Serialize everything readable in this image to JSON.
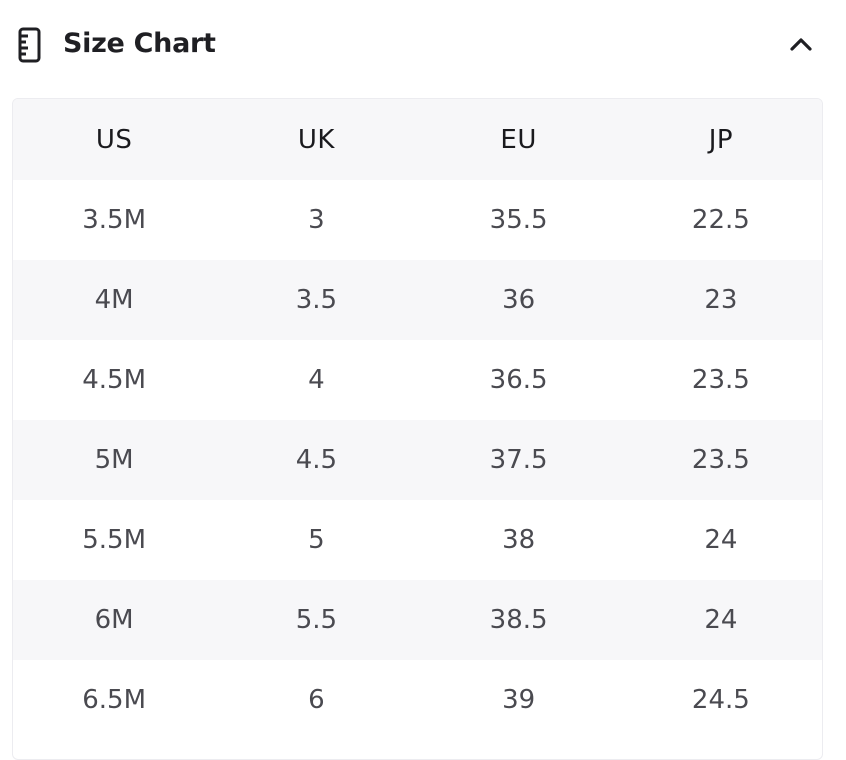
{
  "header": {
    "title": "Size Chart",
    "icon": "ruler-icon",
    "toggle_icon": "chevron-up-icon"
  },
  "table": {
    "columns": [
      "US",
      "UK",
      "EU",
      "JP"
    ],
    "rows": [
      [
        "3.5M",
        "3",
        "35.5",
        "22.5"
      ],
      [
        "4M",
        "3.5",
        "36",
        "23"
      ],
      [
        "4.5M",
        "4",
        "36.5",
        "23.5"
      ],
      [
        "5M",
        "4.5",
        "37.5",
        "23.5"
      ],
      [
        "5.5M",
        "5",
        "38",
        "24"
      ],
      [
        "6M",
        "5.5",
        "38.5",
        "24"
      ],
      [
        "6.5M",
        "6",
        "39",
        "24.5"
      ]
    ]
  },
  "colors": {
    "text_primary": "#1f1f23",
    "text_secondary": "#4a4a50",
    "stripe": "#f7f7f9",
    "border": "#ececf0"
  }
}
